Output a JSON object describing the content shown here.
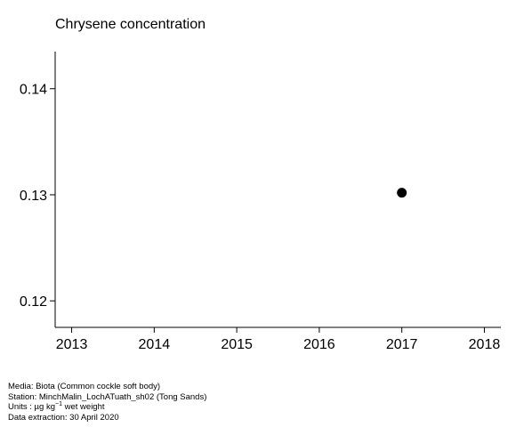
{
  "chart_data": {
    "type": "scatter",
    "title": "Chrysene concentration",
    "xlabel": "",
    "ylabel": "",
    "x_ticks": [
      "2013",
      "2014",
      "2015",
      "2016",
      "2017",
      "2018"
    ],
    "y_ticks": [
      "0.12",
      "0.13",
      "0.14"
    ],
    "xlim": [
      2012.8,
      2018.2
    ],
    "ylim": [
      0.1175,
      0.1435
    ],
    "grid": false,
    "series": [
      {
        "x": [
          2017
        ],
        "y": [
          0.1302
        ],
        "color": "#000000"
      }
    ]
  },
  "footer": {
    "media": "Media: Biota (Common cockle soft body)",
    "station": "Station: MinchMalin_LochATuath_sh02 (Tong Sands)",
    "units_prefix": "Units : µg kg",
    "units_exp": "−1",
    "units_suffix": " wet weight",
    "extraction": "Data extraction: 30 April 2020"
  }
}
